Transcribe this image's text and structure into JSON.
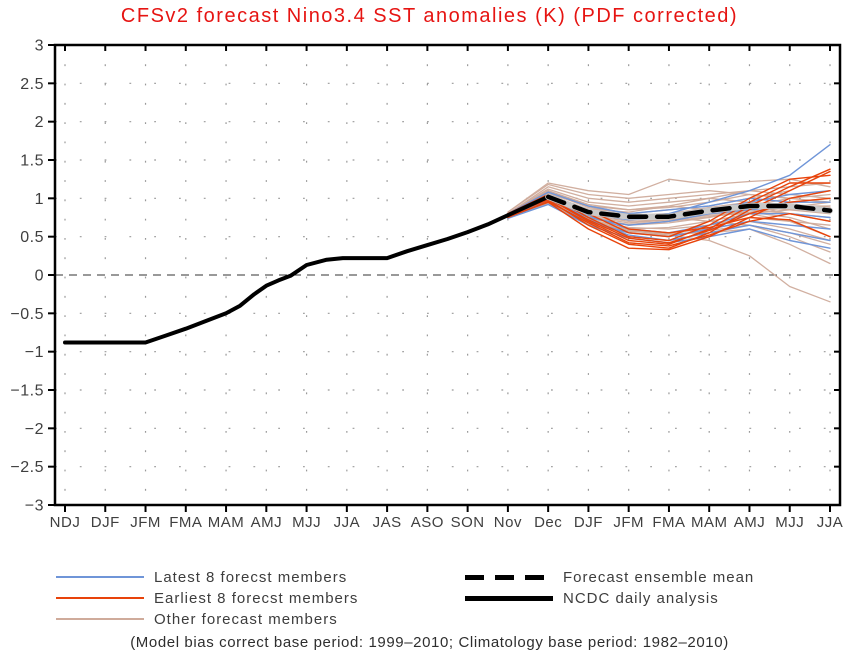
{
  "title": "CFSv2 forecast Nino3.4 SST anomalies (K) (PDF corrected)",
  "footnote": "(Model bias correct base period: 1999–2010; Climatology base period: 1982–2010)",
  "colors": {
    "title": "#e61412",
    "axis": "#000000",
    "tick_label": "#3f3f3f",
    "grid": "#999999",
    "zero_line": "#333333",
    "observed": "#000000",
    "ensemble_mean": "#000000",
    "ensemble_mean_underlay": "#c9c9c9",
    "latest": "#6f95d8",
    "earliest": "#e8430a",
    "other": "#cfab9b"
  },
  "legend": {
    "latest_label": "Latest 8 forecst members",
    "earliest_label": "Earliest 8 forecst members",
    "other_label": "Other forecast members",
    "mean_label": "Forecast ensemble mean",
    "obs_label": "NCDC daily analysis"
  },
  "chart_data": {
    "type": "line",
    "title": "CFSv2 forecast Nino3.4 SST anomalies (K) (PDF corrected)",
    "ylabel": "",
    "xlabel": "",
    "ylim": [
      -3,
      3
    ],
    "ytick_labels": [
      "3",
      "2.5",
      "2",
      "1.5",
      "1",
      "0.5",
      "0",
      "−0.5",
      "−1",
      "−1.5",
      "−2",
      "−2.5",
      "−3"
    ],
    "ytick_values": [
      3,
      2.5,
      2,
      1.5,
      1,
      0.5,
      0,
      -0.5,
      -1,
      -1.5,
      -2,
      -2.5,
      -3
    ],
    "x_tick_labels": [
      "NDJ",
      "DJF",
      "JFM",
      "FMA",
      "MAM",
      "AMJ",
      "MJJ",
      "JJA",
      "JAS",
      "ASO",
      "SON",
      "Nov",
      "Dec",
      "DJF",
      "JFM",
      "FMA",
      "MAM",
      "AMJ",
      "MJJ",
      "JJA"
    ],
    "grid": true,
    "legend_position": "bottom",
    "observed": {
      "name": "NCDC daily analysis",
      "x": [
        0,
        1,
        2,
        2.5,
        3,
        3.5,
        4,
        4.35,
        4.7,
        5,
        5.3,
        5.6,
        6,
        6.5,
        6.9,
        8,
        8.5,
        9,
        9.5,
        10,
        10.5,
        11,
        11.5,
        12
      ],
      "values": [
        -0.88,
        -0.88,
        -0.88,
        -0.79,
        -0.7,
        -0.6,
        -0.5,
        -0.4,
        -0.25,
        -0.14,
        -0.07,
        -0.01,
        0.13,
        0.2,
        0.22,
        0.22,
        0.31,
        0.39,
        0.47,
        0.56,
        0.66,
        0.78,
        0.9,
        1.02
      ]
    },
    "ensemble_mean": {
      "name": "Forecast ensemble mean",
      "x": [
        12,
        13,
        14,
        15,
        16,
        17,
        18,
        19
      ],
      "values": [
        1.02,
        0.82,
        0.76,
        0.76,
        0.84,
        0.9,
        0.9,
        0.84
      ]
    },
    "members": {
      "x": [
        11,
        12,
        13,
        14,
        15,
        16,
        17,
        18,
        19
      ],
      "latest": {
        "name": "Latest 8 forecst members",
        "series": [
          [
            0.8,
            1.05,
            0.85,
            0.75,
            0.8,
            0.95,
            1.1,
            1.3,
            1.7
          ],
          [
            0.78,
            1.0,
            0.8,
            0.72,
            0.75,
            0.85,
            0.95,
            1.05,
            1.1
          ],
          [
            0.8,
            1.08,
            0.9,
            0.8,
            0.85,
            0.9,
            1.0,
            0.95,
            0.95
          ],
          [
            0.76,
            0.98,
            0.75,
            0.65,
            0.7,
            0.8,
            0.85,
            0.9,
            0.85
          ],
          [
            0.78,
            1.02,
            0.78,
            0.6,
            0.55,
            0.65,
            0.8,
            0.8,
            0.75
          ],
          [
            0.75,
            0.95,
            0.7,
            0.55,
            0.5,
            0.6,
            0.7,
            0.65,
            0.6
          ],
          [
            0.77,
            1.0,
            0.72,
            0.52,
            0.45,
            0.55,
            0.65,
            0.55,
            0.45
          ],
          [
            0.74,
            0.92,
            0.65,
            0.48,
            0.42,
            0.5,
            0.6,
            0.45,
            0.35
          ]
        ]
      },
      "earliest": {
        "name": "Earliest 8 forecst members",
        "series": [
          [
            0.8,
            1.0,
            0.7,
            0.45,
            0.4,
            0.6,
            0.9,
            1.15,
            1.38
          ],
          [
            0.78,
            0.98,
            0.65,
            0.4,
            0.35,
            0.55,
            0.85,
            1.1,
            1.35
          ],
          [
            0.8,
            1.05,
            0.75,
            0.5,
            0.45,
            0.65,
            0.95,
            1.2,
            1.2
          ],
          [
            0.76,
            0.95,
            0.6,
            0.35,
            0.33,
            0.5,
            0.75,
            1.0,
            1.1
          ],
          [
            0.79,
            1.02,
            0.8,
            0.55,
            0.5,
            0.7,
            1.0,
            1.25,
            1.3
          ],
          [
            0.77,
            1.0,
            0.72,
            0.48,
            0.42,
            0.58,
            0.8,
            0.95,
            1.0
          ],
          [
            0.75,
            0.96,
            0.68,
            0.42,
            0.38,
            0.52,
            0.7,
            0.8,
            0.7
          ],
          [
            0.78,
            1.05,
            0.85,
            0.6,
            0.55,
            0.62,
            0.75,
            0.72,
            0.5
          ]
        ]
      },
      "other": {
        "name": "Other forecast members",
        "series": [
          [
            0.8,
            1.15,
            1.0,
            0.95,
            1.0,
            1.05,
            1.1,
            1.15,
            1.2
          ],
          [
            0.82,
            1.18,
            1.05,
            1.0,
            1.05,
            1.1,
            1.05,
            1.0,
            0.95
          ],
          [
            0.8,
            1.12,
            0.95,
            0.9,
            0.95,
            1.0,
            0.95,
            0.9,
            0.85
          ],
          [
            0.78,
            1.1,
            0.92,
            0.85,
            0.9,
            0.85,
            0.9,
            1.0,
            1.05
          ],
          [
            0.8,
            1.08,
            0.88,
            0.8,
            0.85,
            0.9,
            1.0,
            1.1,
            1.35
          ],
          [
            0.79,
            1.05,
            0.85,
            0.78,
            0.8,
            0.85,
            0.9,
            0.85,
            0.8
          ],
          [
            0.77,
            1.02,
            0.82,
            0.75,
            0.78,
            0.82,
            0.85,
            0.8,
            0.7
          ],
          [
            0.78,
            1.0,
            0.8,
            0.72,
            0.75,
            0.8,
            0.82,
            0.75,
            0.6
          ],
          [
            0.76,
            0.98,
            0.78,
            0.7,
            0.72,
            0.78,
            0.8,
            0.7,
            0.5
          ],
          [
            0.8,
            1.06,
            0.9,
            0.85,
            0.88,
            0.95,
            1.05,
            1.0,
            1.1
          ],
          [
            0.78,
            1.03,
            0.83,
            0.76,
            0.8,
            0.88,
            0.95,
            0.9,
            0.9
          ],
          [
            0.77,
            1.0,
            0.75,
            0.65,
            0.68,
            0.75,
            0.85,
            0.95,
            1.0
          ],
          [
            0.75,
            0.95,
            0.7,
            0.6,
            0.62,
            0.7,
            0.8,
            0.85,
            0.9
          ],
          [
            0.76,
            0.97,
            0.72,
            0.62,
            0.6,
            0.65,
            0.75,
            0.7,
            0.65
          ],
          [
            0.74,
            0.93,
            0.68,
            0.58,
            0.55,
            0.6,
            0.7,
            0.6,
            0.45
          ],
          [
            0.75,
            0.94,
            0.66,
            0.55,
            0.52,
            0.58,
            0.65,
            0.5,
            0.3
          ],
          [
            0.76,
            0.96,
            0.7,
            0.57,
            0.54,
            0.55,
            0.6,
            0.4,
            0.15
          ],
          [
            0.78,
            1.0,
            0.72,
            0.58,
            0.52,
            0.45,
            0.25,
            -0.15,
            -0.35
          ],
          [
            0.8,
            1.1,
            0.9,
            0.8,
            0.75,
            0.7,
            0.65,
            0.55,
            0.4
          ],
          [
            0.82,
            1.2,
            1.1,
            1.05,
            1.25,
            1.18,
            1.22,
            1.25,
            1.15
          ],
          [
            0.79,
            1.04,
            0.86,
            0.82,
            0.9,
            1.0,
            1.1,
            1.05,
            1.0
          ],
          [
            0.77,
            0.99,
            0.76,
            0.68,
            0.72,
            0.8,
            0.9,
            0.8,
            0.75
          ],
          [
            0.75,
            0.96,
            0.73,
            0.66,
            0.7,
            0.76,
            0.82,
            0.88,
            0.95
          ],
          [
            0.78,
            1.01,
            0.79,
            0.74,
            0.78,
            0.84,
            0.88,
            0.92,
            0.88
          ]
        ]
      }
    }
  }
}
